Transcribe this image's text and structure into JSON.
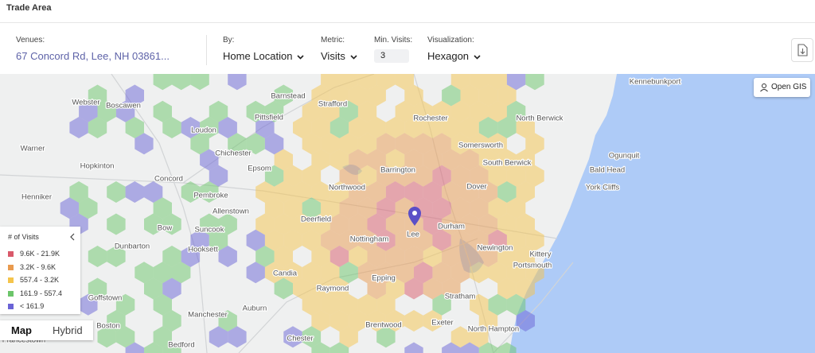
{
  "header": {
    "title": "Trade Area"
  },
  "filters": {
    "venues": {
      "label": "Venues:",
      "value": "67 Concord Rd, Lee, NH 03861..."
    },
    "by": {
      "label": "By:",
      "value": "Home Location"
    },
    "metric": {
      "label": "Metric:",
      "value": "Visits"
    },
    "min_visits": {
      "label": "Min. Visits:",
      "value": 3
    },
    "visualization": {
      "label": "Visualization:",
      "value": "Hexagon"
    }
  },
  "map": {
    "open_gis": "Open GIS",
    "legend": {
      "title": "# of Visits",
      "items": [
        "9.6K - 21.9K",
        "3.2K - 9.6K",
        "557.4 - 3.2K",
        "161.9 - 557.4",
        "< 161.9"
      ]
    },
    "view_toggle": [
      "Map",
      "Hybrid"
    ],
    "place_labels": [
      "Barnstead",
      "Strafford",
      "Rochester",
      "Kennebunkport",
      "Webster",
      "Boscawen",
      "Pittsfield",
      "North Berwick",
      "Loudon",
      "Somersworth",
      "Warner",
      "Chichester",
      "Epsom",
      "Ogunquit",
      "Northwood",
      "Barrington",
      "South Berwick",
      "Bald Head",
      "Hopkinton",
      "Concord",
      "Dover",
      "York Cliffs",
      "Henniker",
      "Pembroke",
      "Allenstown",
      "Deerfield",
      "Durham",
      "Lee",
      "Bow",
      "Suncook",
      "Nottingham",
      "Dunbarton",
      "Hooksett",
      "Newington",
      "Kittery",
      "Portsmouth",
      "Candia",
      "Epping",
      "Goffstown",
      "Raymond",
      "Stratham",
      "Manchester",
      "Auburn",
      "Boston",
      "Brentwood",
      "Exeter",
      "North Hampton",
      "Francestown",
      "Chester",
      "Bedford"
    ]
  }
}
